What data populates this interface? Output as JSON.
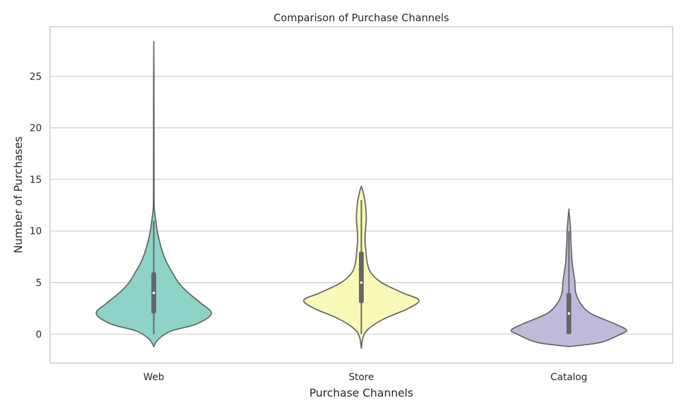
{
  "chart_data": {
    "type": "violin",
    "title": "Comparison of Purchase Channels",
    "xlabel": "Purchase Channels",
    "ylabel": "Number of Purchases",
    "ylim": [
      -2.8,
      29.8
    ],
    "yticks": [
      0,
      5,
      10,
      15,
      20,
      25
    ],
    "grid": true,
    "categories": [
      "Web",
      "Store",
      "Catalog"
    ],
    "series": [
      {
        "category": "Web",
        "color": "#8dd3c7",
        "min": 0,
        "q1": 2,
        "median": 4,
        "q3": 6,
        "max": 11,
        "extreme_max": 27,
        "density": [
          [
            -1.2,
            0.0
          ],
          [
            -0.5,
            0.08
          ],
          [
            0.3,
            0.3
          ],
          [
            1.0,
            0.75
          ],
          [
            2.0,
            1.0
          ],
          [
            3.0,
            0.82
          ],
          [
            4.0,
            0.6
          ],
          [
            5.0,
            0.43
          ],
          [
            6.0,
            0.32
          ],
          [
            7.0,
            0.22
          ],
          [
            8.0,
            0.15
          ],
          [
            9.0,
            0.1
          ],
          [
            10.0,
            0.06
          ],
          [
            11.0,
            0.035
          ],
          [
            12.0,
            0.012
          ],
          [
            13.0,
            0.006
          ],
          [
            15.0,
            0.005
          ],
          [
            20.0,
            0.004
          ],
          [
            25.0,
            0.003
          ],
          [
            28.0,
            0.0
          ]
        ]
      },
      {
        "category": "Store",
        "color": "#f9f9b7",
        "min": 0,
        "q1": 3,
        "median": 5,
        "q3": 8,
        "max": 13,
        "density": [
          [
            -1.4,
            0.0
          ],
          [
            -0.3,
            0.03
          ],
          [
            0.5,
            0.12
          ],
          [
            1.5,
            0.4
          ],
          [
            2.5,
            0.82
          ],
          [
            3.3,
            1.0
          ],
          [
            4.0,
            0.72
          ],
          [
            5.0,
            0.35
          ],
          [
            6.0,
            0.16
          ],
          [
            7.0,
            0.1
          ],
          [
            8.0,
            0.08
          ],
          [
            9.0,
            0.065
          ],
          [
            10.0,
            0.07
          ],
          [
            11.0,
            0.085
          ],
          [
            12.0,
            0.08
          ],
          [
            13.0,
            0.06
          ],
          [
            14.0,
            0.02
          ],
          [
            14.3,
            0.0
          ]
        ]
      },
      {
        "category": "Catalog",
        "color": "#bebada",
        "min": 0,
        "q1": 0,
        "median": 2,
        "q3": 4,
        "max": 10,
        "density": [
          [
            -1.2,
            0.0
          ],
          [
            -0.8,
            0.55
          ],
          [
            0.0,
            0.9
          ],
          [
            0.4,
            1.0
          ],
          [
            1.0,
            0.8
          ],
          [
            2.0,
            0.38
          ],
          [
            3.0,
            0.2
          ],
          [
            4.0,
            0.12
          ],
          [
            5.0,
            0.105
          ],
          [
            6.0,
            0.08
          ],
          [
            7.0,
            0.055
          ],
          [
            8.0,
            0.045
          ],
          [
            9.0,
            0.035
          ],
          [
            10.0,
            0.03
          ],
          [
            11.0,
            0.018
          ],
          [
            12.0,
            0.0
          ]
        ]
      }
    ]
  }
}
